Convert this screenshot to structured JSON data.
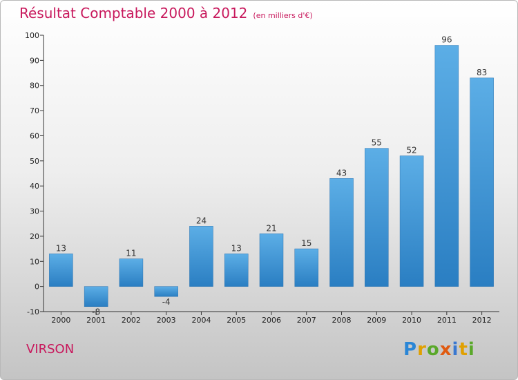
{
  "header": {
    "title": "Résultat Comptable 2000 à 2012",
    "unit": "(en milliers d'€)"
  },
  "footer": {
    "commune": "VIRSON",
    "logo": "Proxiti"
  },
  "colors": {
    "bar_top": "#5caee6",
    "bar_bottom": "#2a7ec2",
    "title": "#c8185c"
  },
  "chart_data": {
    "type": "bar",
    "title": "Résultat Comptable 2000 à 2012",
    "subtitle": "(en milliers d'€)",
    "categories": [
      "2000",
      "2001",
      "2002",
      "2003",
      "2004",
      "2005",
      "2006",
      "2007",
      "2008",
      "2009",
      "2010",
      "2011",
      "2012"
    ],
    "values": [
      13,
      -8,
      11,
      -4,
      24,
      13,
      21,
      15,
      43,
      55,
      52,
      96,
      83
    ],
    "ylim": [
      -10,
      100
    ],
    "yticks": [
      -10,
      0,
      10,
      20,
      30,
      40,
      50,
      60,
      70,
      80,
      90,
      100
    ],
    "grid": false,
    "xlabel": "",
    "ylabel": ""
  }
}
